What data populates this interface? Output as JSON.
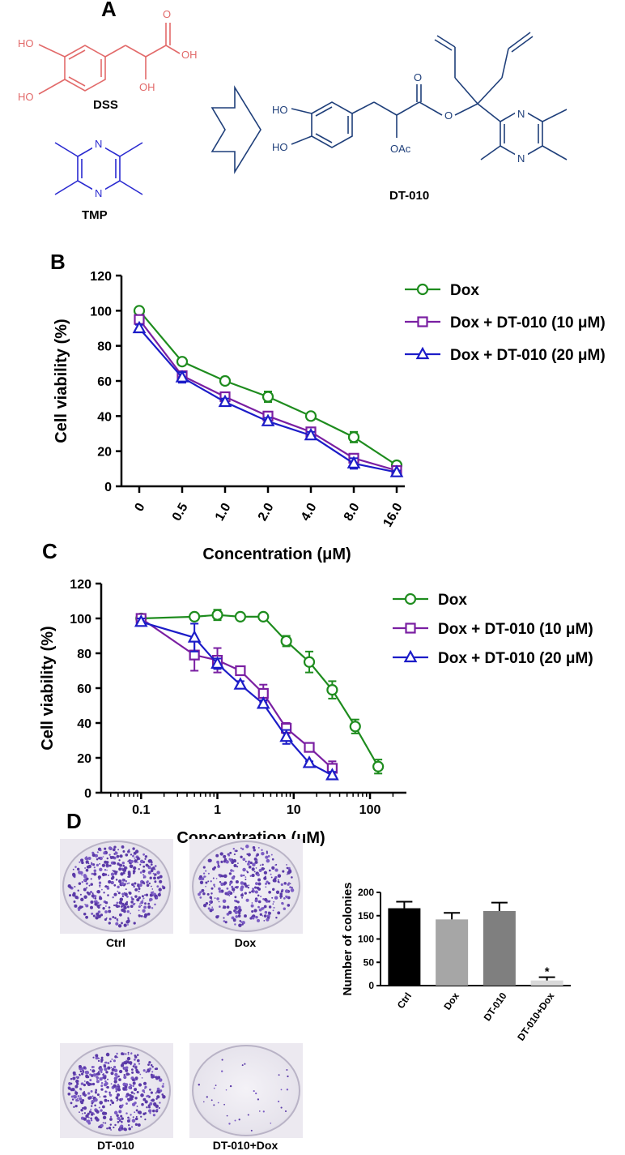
{
  "panel_a": {
    "label": "A",
    "dss_label": "DSS",
    "tmp_label": "TMP",
    "product_label": "DT-010",
    "atoms": {
      "ho": "HO",
      "oh": "OH",
      "o": "O",
      "n": "N",
      "oac": "OAc"
    },
    "colors": {
      "dss": "#e26a6a",
      "tmp": "#2a2ad0",
      "product": "#1f3f7a"
    }
  },
  "panel_d": {
    "label": "D",
    "plate_labels": [
      "Ctrl",
      "Dox",
      "DT-010",
      "DT-010+Dox"
    ]
  },
  "chart_data": [
    {
      "id": "B",
      "label": "B",
      "type": "line",
      "x_scale": "categorical",
      "categories": [
        "0",
        "0.5",
        "1.0",
        "2.0",
        "4.0",
        "8.0",
        "16.0"
      ],
      "xlabel": "Concentration (μM)",
      "ylabel": "Cell viability (%)",
      "ylim": [
        0,
        120
      ],
      "yticks": [
        "0",
        "20",
        "40",
        "60",
        "80",
        "100",
        "120"
      ],
      "legend_position": "top-right",
      "series": [
        {
          "name": "Dox",
          "color": "#1e8c1e",
          "marker": "circle",
          "values": [
            100,
            71,
            60,
            51,
            40,
            28,
            12
          ],
          "errors": [
            0,
            1,
            2,
            3,
            2,
            3,
            2
          ]
        },
        {
          "name": "Dox + DT-010 (10 μM)",
          "color": "#7a1fa2",
          "marker": "square",
          "values": [
            95,
            63,
            51,
            40,
            31,
            16,
            9
          ],
          "errors": [
            2,
            2,
            2,
            2,
            2,
            2,
            1
          ]
        },
        {
          "name": "Dox + DT-010 (20 μM)",
          "color": "#1c1cc8",
          "marker": "triangle",
          "values": [
            90,
            62,
            48,
            37,
            29,
            13,
            8
          ],
          "errors": [
            2,
            3,
            2,
            2,
            2,
            3,
            1
          ]
        }
      ]
    },
    {
      "id": "C",
      "label": "C",
      "type": "line",
      "x_scale": "log",
      "xlim": [
        0.03,
        300
      ],
      "xtick_values": [
        0.1,
        1,
        10,
        100
      ],
      "xtick_labels": [
        "0.1",
        "1",
        "10",
        "100"
      ],
      "xlabel": "Concentration (μM)",
      "ylabel": "Cell viability (%)",
      "ylim": [
        0,
        120
      ],
      "yticks": [
        "0",
        "20",
        "40",
        "60",
        "80",
        "100",
        "120"
      ],
      "legend_position": "top-right",
      "series": [
        {
          "name": "Dox",
          "color": "#1e8c1e",
          "marker": "circle",
          "x": [
            0.1,
            0.5,
            1,
            2,
            4,
            8,
            16,
            32,
            64,
            128
          ],
          "values": [
            100,
            101,
            102,
            101,
            101,
            87,
            75,
            59,
            38,
            15
          ],
          "errors": [
            1,
            1,
            3,
            1,
            1,
            3,
            6,
            5,
            4,
            4
          ]
        },
        {
          "name": "Dox + DT-010 (10 μM)",
          "color": "#7a1fa2",
          "marker": "square",
          "x": [
            0.1,
            0.5,
            1,
            2,
            4,
            8,
            16,
            32
          ],
          "values": [
            100,
            79,
            76,
            70,
            57,
            37,
            26,
            14
          ],
          "errors": [
            1,
            9,
            7,
            2,
            5,
            3,
            2,
            4
          ]
        },
        {
          "name": "Dox + DT-010 (20 μM)",
          "color": "#1c1cc8",
          "marker": "triangle",
          "x": [
            0.1,
            0.5,
            1,
            2,
            4,
            8,
            16,
            32
          ],
          "values": [
            98,
            89,
            74,
            62,
            51,
            32,
            17,
            10
          ],
          "errors": [
            2,
            8,
            3,
            2,
            2,
            4,
            1,
            2
          ]
        }
      ]
    },
    {
      "id": "D",
      "type": "bar",
      "categories": [
        "Ctrl",
        "Dox",
        "DT-010",
        "DT-010+Dox"
      ],
      "values": [
        166,
        142,
        160,
        11
      ],
      "errors": [
        14,
        14,
        18,
        7
      ],
      "colors": [
        "#000000",
        "#a6a6a6",
        "#7f7f7f",
        "#d9d9d9"
      ],
      "significance": [
        "",
        "",
        "",
        "*"
      ],
      "ylabel": "Number of colonies",
      "ylim": [
        0,
        200
      ],
      "yticks": [
        "0",
        "50",
        "100",
        "150",
        "200"
      ]
    }
  ]
}
